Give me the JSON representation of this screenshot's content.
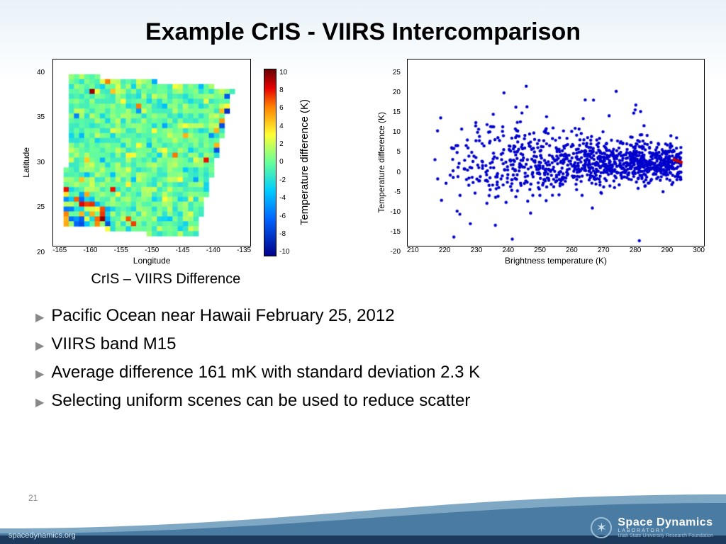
{
  "title": "Example CrIS - VIIRS Intercomparison",
  "page_number": "21",
  "heatmap": {
    "type": "heatmap",
    "caption": "CrIS – VIIRS Difference",
    "xlabel": "Longitude",
    "ylabel": "Latitude",
    "xlim": [
      -168,
      -132
    ],
    "ylim": [
      17,
      43
    ],
    "xtick_labels": [
      "-165",
      "-160",
      "-155",
      "-150",
      "-145",
      "-140",
      "-135"
    ],
    "ytick_labels": [
      "40",
      "35",
      "30",
      "25",
      "20"
    ],
    "grid_size": [
      38,
      38
    ],
    "background_color": "#ffffff",
    "colorbar": {
      "label": "Temperature difference (K)",
      "min": -10,
      "max": 10,
      "tick_labels": [
        "10",
        "8",
        "6",
        "4",
        "2",
        "0",
        "-2",
        "-4",
        "-6",
        "-8",
        "-10"
      ],
      "stops": [
        {
          "v": -10,
          "c": "#00008b"
        },
        {
          "v": -6,
          "c": "#0066ff"
        },
        {
          "v": -3,
          "c": "#00ccff"
        },
        {
          "v": 0,
          "c": "#66ff99"
        },
        {
          "v": 3,
          "c": "#ffff33"
        },
        {
          "v": 6,
          "c": "#ff8000"
        },
        {
          "v": 8,
          "c": "#e60000"
        },
        {
          "v": 10,
          "c": "#660000"
        }
      ]
    },
    "swath_quad": [
      [
        -165,
        41
      ],
      [
        -135,
        39
      ],
      [
        -142,
        18
      ],
      [
        -166,
        20
      ]
    ]
  },
  "scatter": {
    "type": "scatter",
    "xlabel": "Brightness temperature (K)",
    "ylabel": "Temperature difference (K)",
    "xlim": [
      210,
      300
    ],
    "ylim": [
      -20,
      25
    ],
    "xtick_labels": [
      "210",
      "220",
      "230",
      "240",
      "250",
      "260",
      "270",
      "280",
      "290",
      "300"
    ],
    "ytick_labels": [
      "25",
      "20",
      "15",
      "10",
      "5",
      "0",
      "-5",
      "-10",
      "-15",
      "-20"
    ],
    "marker_color": "#0000cc",
    "marker_size": 2.2,
    "n_points": 1100,
    "dense_band_center": 0,
    "dense_band_sd": 2.3,
    "dense_x_range": [
      218,
      293
    ],
    "end_red_points": [
      [
        292,
        0.5
      ],
      [
        293,
        0.2
      ],
      [
        291,
        0.8
      ]
    ],
    "end_red_color": "#cc0000",
    "background_color": "#ffffff",
    "border_color": "#000000"
  },
  "bullets": [
    "Pacific Ocean near Hawaii February 25, 2012",
    "VIIRS band M15",
    "Average difference 161 mK with standard deviation 2.3 K",
    "Selecting uniform scenes can be used to reduce scatter"
  ],
  "bullet_color": "#888888",
  "footer": {
    "url": "spacedynamics.org",
    "org_name": "Space Dynamics",
    "org_sub": "LABORATORY",
    "org_tag": "Utah State University Research Foundation",
    "wave_color_top": "#7fa8c4",
    "wave_color_mid": "#4a7ba3",
    "wave_color_bar": "#1b3a5c"
  }
}
